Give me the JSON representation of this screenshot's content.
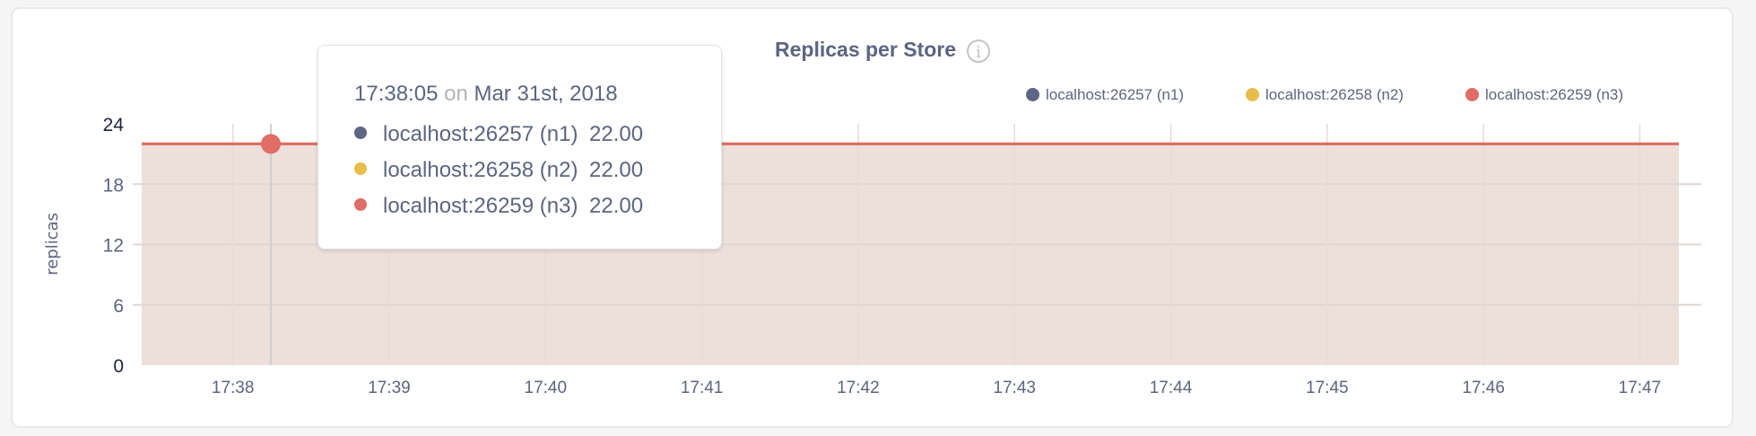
{
  "chart_data": {
    "type": "area",
    "title": "Replicas per Store",
    "ylabel": "replicas",
    "xlabel": "",
    "ylim": [
      0,
      24
    ],
    "yticks": [
      "0",
      "6",
      "12",
      "18",
      "24"
    ],
    "x_ticks": [
      "17:38",
      "17:39",
      "17:40",
      "17:41",
      "17:42",
      "17:43",
      "17:44",
      "17:45",
      "17:46",
      "17:47"
    ],
    "xlim": [
      "17:37:25",
      "17:47:15"
    ],
    "grid": true,
    "legend_position": "top-right",
    "series": [
      {
        "name": "localhost:26257 (n1)",
        "color": "#5d6785",
        "x": [
          "17:37:25",
          "17:47:15"
        ],
        "values": [
          22,
          22
        ]
      },
      {
        "name": "localhost:26258 (n2)",
        "color": "#e9bd4a",
        "x": [
          "17:37:25",
          "17:47:15"
        ],
        "values": [
          22,
          22
        ]
      },
      {
        "name": "localhost:26259 (n3)",
        "color": "#e06d67",
        "x": [
          "17:37:25",
          "17:47:15"
        ],
        "values": [
          22,
          22
        ]
      }
    ],
    "fill_color": "#eddfd9",
    "info_icon": "info-circle-icon",
    "tooltip": {
      "time": "17:38:05",
      "on": "on",
      "date": "Mar 31st, 2018",
      "rows": [
        {
          "label": "localhost:26257 (n1)",
          "value": "22.00"
        },
        {
          "label": "localhost:26258 (n2)",
          "value": "22.00"
        },
        {
          "label": "localhost:26259 (n3)",
          "value": "22.00"
        }
      ]
    }
  }
}
